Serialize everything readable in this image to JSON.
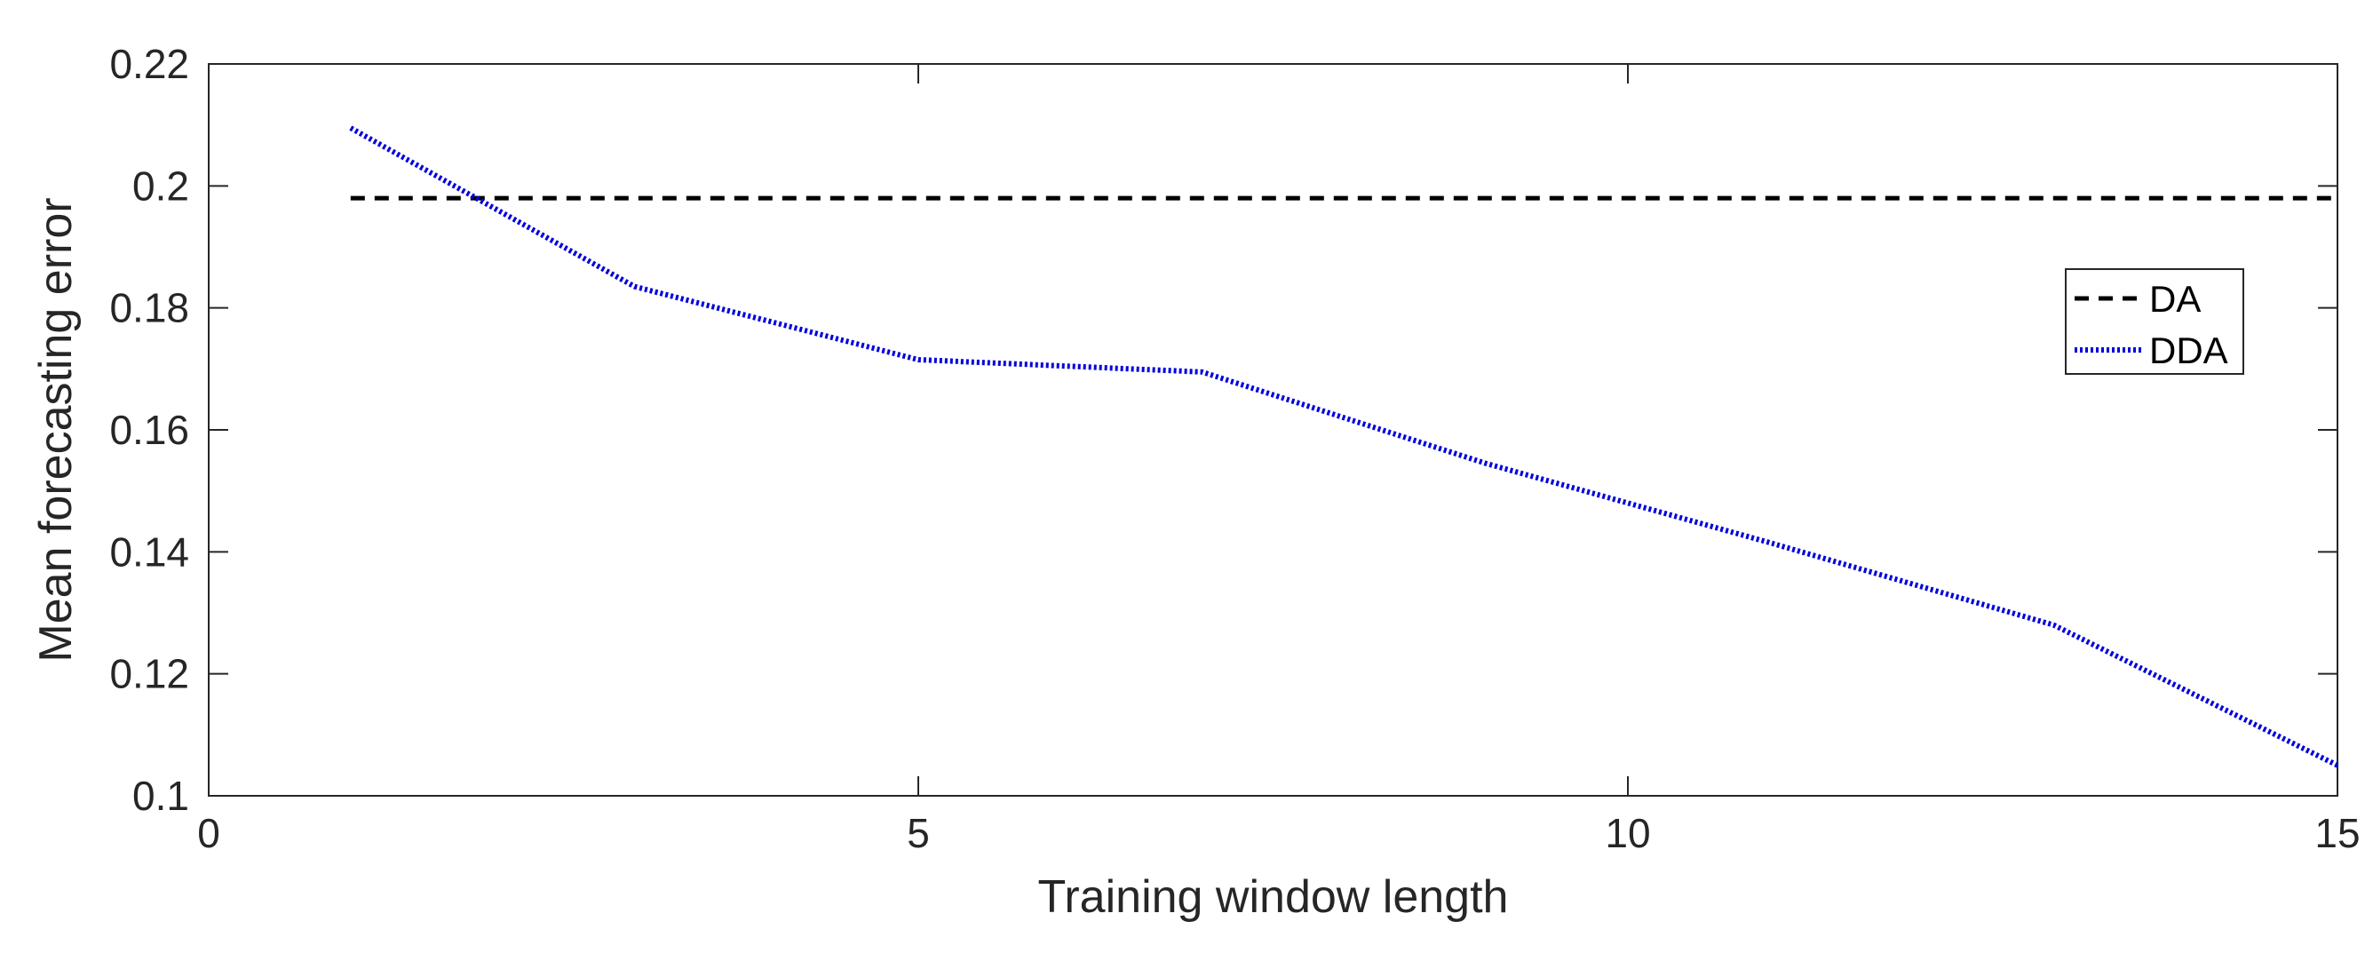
{
  "chart_data": {
    "type": "line",
    "title": "",
    "xlabel": "Training window length",
    "ylabel": "Mean forecasting error",
    "xlim": [
      0,
      15
    ],
    "ylim": [
      0.1,
      0.22
    ],
    "xticks": [
      0,
      5,
      10,
      15
    ],
    "yticks": [
      0.1,
      0.12,
      0.14,
      0.16,
      0.18,
      0.2,
      0.22
    ],
    "xtick_labels": [
      "0",
      "5",
      "10",
      "15"
    ],
    "ytick_labels": [
      "0.1",
      "0.12",
      "0.14",
      "0.16",
      "0.18",
      "0.2",
      "0.22"
    ],
    "grid": false,
    "legend_position": "right",
    "series": [
      {
        "name": "DA",
        "style": "dashed",
        "color": "#000000",
        "x": [
          1,
          15
        ],
        "y": [
          0.198,
          0.198
        ]
      },
      {
        "name": "DDA",
        "style": "dotted",
        "color": "#0000dd",
        "x": [
          1,
          3,
          5,
          7,
          9,
          11,
          13,
          15
        ],
        "y": [
          0.2095,
          0.1835,
          0.1715,
          0.1695,
          0.1545,
          0.1415,
          0.128,
          0.105
        ]
      }
    ]
  }
}
